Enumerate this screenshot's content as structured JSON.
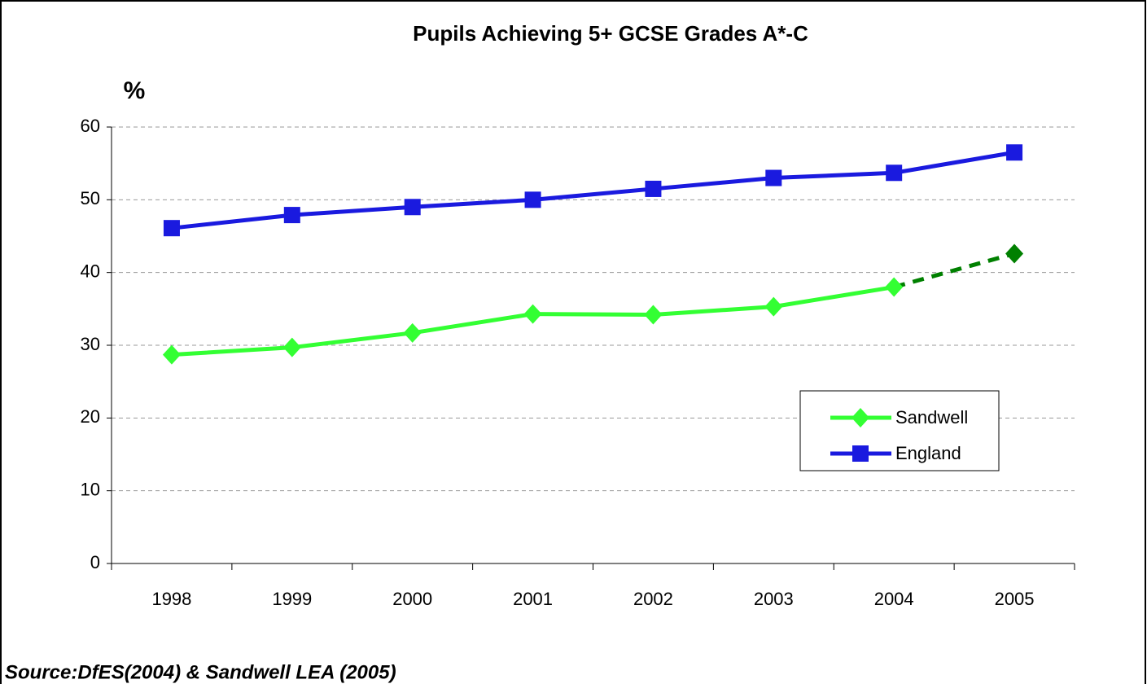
{
  "chart_data": {
    "type": "line",
    "title": "Pupils Achieving 5+ GCSE Grades A*-C",
    "y_label": "%",
    "source": "Source:DfES(2004) & Sandwell LEA (2005)",
    "categories": [
      "1998",
      "1999",
      "2000",
      "2001",
      "2002",
      "2003",
      "2004",
      "2005"
    ],
    "series": [
      {
        "name": "Sandwell",
        "color": "#33ff33",
        "marker": "diamond",
        "values": [
          28.7,
          29.7,
          31.7,
          34.3,
          34.2,
          35.3,
          38.0,
          42.6
        ],
        "projected": [
          false,
          false,
          false,
          false,
          false,
          false,
          false,
          true
        ],
        "projected_color": "#008000"
      },
      {
        "name": "England",
        "color": "#1a1adf",
        "marker": "square",
        "values": [
          46.1,
          47.9,
          49.0,
          50.0,
          51.5,
          53.0,
          53.7,
          56.5
        ]
      }
    ],
    "ylim": [
      0,
      60
    ],
    "yticks": [
      0,
      10,
      20,
      30,
      40,
      50,
      60
    ],
    "grid": true,
    "legend": "center right"
  }
}
